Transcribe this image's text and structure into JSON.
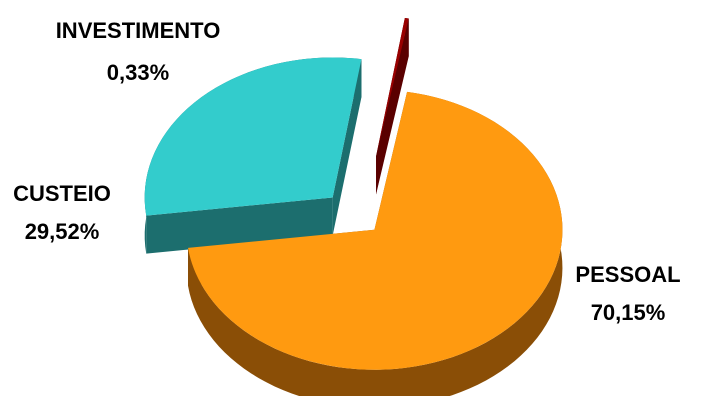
{
  "chart_data": {
    "type": "pie",
    "title": "",
    "slices": [
      {
        "label": "PESSOAL",
        "value_label": "70,15%",
        "value": 70.15,
        "color": "#FF9A10",
        "side_color": "#8A4E06"
      },
      {
        "label": "CUSTEIO",
        "value_label": "29,52%",
        "value": 29.52,
        "color": "#33CCCC",
        "side_color": "#1C6E6E"
      },
      {
        "label": "INVESTIMENTO",
        "value_label": "0,33%",
        "value": 0.33,
        "color": "#990000",
        "side_color": "#5A0000"
      }
    ],
    "legend": "none",
    "three_d": true,
    "exploded": true
  }
}
